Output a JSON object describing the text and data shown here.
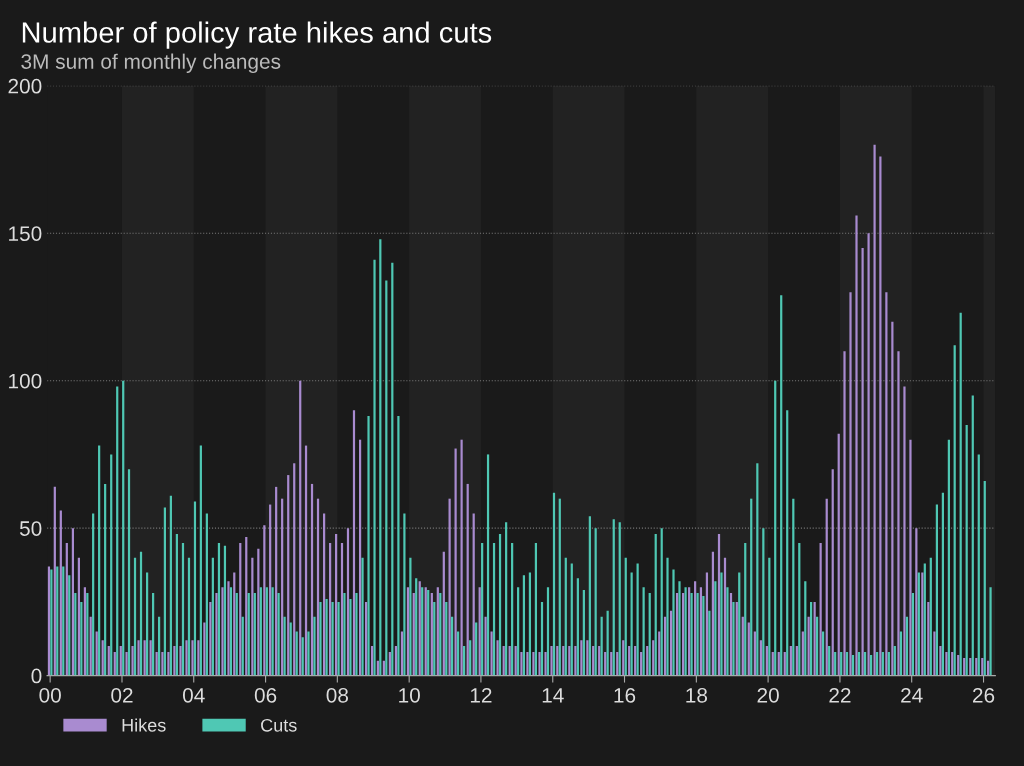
{
  "chart_data": {
    "type": "bar",
    "title": "Number of policy rate hikes and cuts",
    "subtitle": "3M sum of monthly changes",
    "x": [
      "2000-01",
      "2000-03",
      "2000-05",
      "2000-07",
      "2000-09",
      "2000-11",
      "2001-01",
      "2001-03",
      "2001-05",
      "2001-07",
      "2001-09",
      "2001-11",
      "2002-01",
      "2002-03",
      "2002-05",
      "2002-07",
      "2002-09",
      "2002-11",
      "2003-01",
      "2003-03",
      "2003-05",
      "2003-07",
      "2003-09",
      "2003-11",
      "2004-01",
      "2004-03",
      "2004-05",
      "2004-07",
      "2004-09",
      "2004-11",
      "2005-01",
      "2005-03",
      "2005-05",
      "2005-07",
      "2005-09",
      "2005-11",
      "2006-01",
      "2006-03",
      "2006-05",
      "2006-07",
      "2006-09",
      "2006-11",
      "2007-01",
      "2007-03",
      "2007-05",
      "2007-07",
      "2007-09",
      "2007-11",
      "2008-01",
      "2008-03",
      "2008-05",
      "2008-07",
      "2008-09",
      "2008-11",
      "2009-01",
      "2009-03",
      "2009-05",
      "2009-07",
      "2009-09",
      "2009-11",
      "2010-01",
      "2010-03",
      "2010-05",
      "2010-07",
      "2010-09",
      "2010-11",
      "2011-01",
      "2011-03",
      "2011-05",
      "2011-07",
      "2011-09",
      "2011-11",
      "2012-01",
      "2012-03",
      "2012-05",
      "2012-07",
      "2012-09",
      "2012-11",
      "2013-01",
      "2013-03",
      "2013-05",
      "2013-07",
      "2013-09",
      "2013-11",
      "2014-01",
      "2014-03",
      "2014-05",
      "2014-07",
      "2014-09",
      "2014-11",
      "2015-01",
      "2015-03",
      "2015-05",
      "2015-07",
      "2015-09",
      "2015-11",
      "2016-01",
      "2016-03",
      "2016-05",
      "2016-07",
      "2016-09",
      "2016-11",
      "2017-01",
      "2017-03",
      "2017-05",
      "2017-07",
      "2017-09",
      "2017-11",
      "2018-01",
      "2018-03",
      "2018-05",
      "2018-07",
      "2018-09",
      "2018-11",
      "2019-01",
      "2019-03",
      "2019-05",
      "2019-07",
      "2019-09",
      "2019-11",
      "2020-01",
      "2020-03",
      "2020-05",
      "2020-07",
      "2020-09",
      "2020-11",
      "2021-01",
      "2021-03",
      "2021-05",
      "2021-07",
      "2021-09",
      "2021-11",
      "2022-01",
      "2022-03",
      "2022-05",
      "2022-07",
      "2022-09",
      "2022-11",
      "2023-01",
      "2023-03",
      "2023-05",
      "2023-07",
      "2023-09",
      "2023-11",
      "2024-01",
      "2024-03",
      "2024-05",
      "2024-07",
      "2024-09",
      "2024-11",
      "2025-01",
      "2025-03",
      "2025-05",
      "2025-07",
      "2025-09",
      "2025-11",
      "2026-01",
      "2026-03"
    ],
    "series": [
      {
        "name": "Hikes",
        "color": "#a98bd0",
        "values": [
          37,
          64,
          56,
          45,
          50,
          40,
          30,
          20,
          15,
          12,
          10,
          8,
          10,
          8,
          10,
          12,
          12,
          12,
          8,
          8,
          8,
          10,
          10,
          12,
          12,
          12,
          18,
          25,
          28,
          30,
          32,
          35,
          45,
          47,
          40,
          43,
          51,
          58,
          64,
          60,
          68,
          72,
          100,
          78,
          65,
          60,
          55,
          45,
          48,
          45,
          50,
          90,
          80,
          25,
          10,
          5,
          5,
          8,
          10,
          15,
          30,
          28,
          32,
          30,
          28,
          30,
          42,
          60,
          77,
          80,
          65,
          55,
          30,
          20,
          15,
          12,
          10,
          10,
          10,
          8,
          8,
          8,
          8,
          8,
          10,
          10,
          10,
          10,
          10,
          12,
          12,
          10,
          10,
          8,
          8,
          8,
          12,
          10,
          10,
          8,
          10,
          12,
          15,
          20,
          22,
          28,
          28,
          30,
          32,
          30,
          35,
          42,
          48,
          40,
          28,
          25,
          20,
          18,
          15,
          12,
          10,
          8,
          8,
          8,
          10,
          10,
          15,
          20,
          25,
          45,
          60,
          70,
          82,
          110,
          130,
          156,
          145,
          150,
          180,
          176,
          130,
          120,
          110,
          98,
          80,
          50,
          35,
          25,
          15,
          10,
          8,
          8,
          7,
          6,
          6,
          6,
          6,
          5
        ]
      },
      {
        "name": "Cuts",
        "color": "#4fc8b4",
        "values": [
          36,
          37,
          37,
          34,
          28,
          25,
          28,
          55,
          78,
          65,
          75,
          98,
          100,
          70,
          40,
          42,
          35,
          28,
          20,
          57,
          61,
          48,
          45,
          40,
          59,
          78,
          55,
          40,
          45,
          44,
          30,
          28,
          20,
          28,
          28,
          30,
          30,
          30,
          28,
          20,
          18,
          15,
          13,
          15,
          20,
          25,
          26,
          25,
          25,
          28,
          26,
          28,
          40,
          88,
          141,
          148,
          134,
          140,
          88,
          55,
          40,
          33,
          30,
          29,
          25,
          28,
          25,
          20,
          15,
          10,
          12,
          18,
          45,
          75,
          45,
          48,
          52,
          45,
          30,
          34,
          35,
          45,
          25,
          30,
          62,
          60,
          40,
          38,
          33,
          29,
          54,
          50,
          20,
          22,
          53,
          52,
          40,
          35,
          38,
          30,
          28,
          48,
          50,
          40,
          36,
          32,
          30,
          28,
          28,
          27,
          22,
          32,
          35,
          30,
          25,
          35,
          45,
          60,
          72,
          50,
          40,
          100,
          129,
          90,
          60,
          45,
          32,
          25,
          20,
          15,
          10,
          8,
          8,
          8,
          7,
          8,
          8,
          7,
          8,
          8,
          8,
          10,
          15,
          20,
          28,
          35,
          38,
          40,
          58,
          62,
          80,
          112,
          123,
          85,
          95,
          75,
          66,
          30
        ]
      }
    ],
    "xlim": [
      "1999-12-01",
      "2026-05-01"
    ],
    "xticks": [
      {
        "value": "2000-01-01",
        "label": "00"
      },
      {
        "value": "2002-01-01",
        "label": "02"
      },
      {
        "value": "2004-01-01",
        "label": "04"
      },
      {
        "value": "2006-01-01",
        "label": "06"
      },
      {
        "value": "2008-01-01",
        "label": "08"
      },
      {
        "value": "2010-01-01",
        "label": "10"
      },
      {
        "value": "2012-01-01",
        "label": "12"
      },
      {
        "value": "2014-01-01",
        "label": "14"
      },
      {
        "value": "2016-01-01",
        "label": "16"
      },
      {
        "value": "2018-01-01",
        "label": "18"
      },
      {
        "value": "2020-01-01",
        "label": "20"
      },
      {
        "value": "2022-01-01",
        "label": "22"
      },
      {
        "value": "2024-01-01",
        "label": "24"
      },
      {
        "value": "2026-01-01",
        "label": "26"
      }
    ],
    "ylim": [
      0,
      200
    ],
    "yticks": [
      0,
      50,
      100,
      150,
      200
    ],
    "bands": [
      {
        "axis": "x",
        "from": "2002-01-01",
        "to": "2004-01-01",
        "color": "#222222"
      },
      {
        "axis": "x",
        "from": "2006-01-01",
        "to": "2008-01-01",
        "color": "#222222"
      },
      {
        "axis": "x",
        "from": "2010-01-01",
        "to": "2012-01-01",
        "color": "#222222"
      },
      {
        "axis": "x",
        "from": "2014-01-01",
        "to": "2016-01-01",
        "color": "#222222"
      },
      {
        "axis": "x",
        "from": "2018-01-01",
        "to": "2020-01-01",
        "color": "#222222"
      },
      {
        "axis": "x",
        "from": "2022-01-01",
        "to": "2024-01-01",
        "color": "#222222"
      },
      {
        "axis": "x",
        "from": "2026-01-01",
        "to": "2026-05-01",
        "color": "#222222"
      }
    ],
    "grid": "y",
    "legend": "bottom left"
  }
}
